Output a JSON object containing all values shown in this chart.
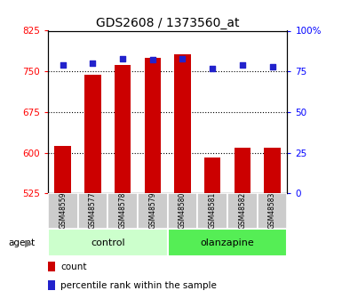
{
  "title": "GDS2608 / 1373560_at",
  "samples": [
    "GSM48559",
    "GSM48577",
    "GSM48578",
    "GSM48579",
    "GSM48580",
    "GSM48581",
    "GSM48582",
    "GSM48583"
  ],
  "counts": [
    613,
    743,
    762,
    775,
    782,
    592,
    609,
    609
  ],
  "percentile_ranks": [
    79,
    80,
    83,
    82,
    83,
    77,
    79,
    78
  ],
  "ylim_left": [
    525,
    825
  ],
  "ylim_right": [
    0,
    100
  ],
  "yticks_left": [
    525,
    600,
    675,
    750,
    825
  ],
  "yticks_right": [
    0,
    25,
    50,
    75,
    100
  ],
  "bar_color": "#cc0000",
  "dot_color": "#2222cc",
  "bar_width": 0.55,
  "control_color": "#ccffcc",
  "olanzapine_color": "#55ee55",
  "sample_box_color": "#cccccc",
  "legend_count_label": "count",
  "legend_pct_label": "percentile rank within the sample",
  "grid_lines": [
    600,
    675,
    750
  ],
  "groups": [
    {
      "label": "control",
      "start": 0,
      "end": 3,
      "color": "#ccffcc"
    },
    {
      "label": "olanzapine",
      "start": 4,
      "end": 7,
      "color": "#55ee55"
    }
  ]
}
